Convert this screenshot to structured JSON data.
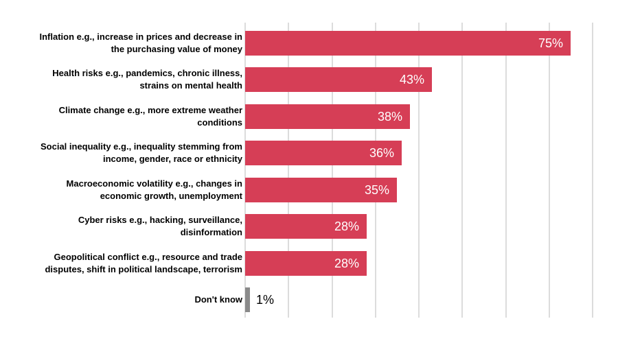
{
  "chart_data": {
    "type": "bar",
    "orientation": "horizontal",
    "title": "",
    "xlabel": "",
    "ylabel": "",
    "grid": true,
    "legend": false,
    "xlim": [
      0,
      80
    ],
    "gridline_step": 10,
    "categories": [
      "Inflation e.g., increase in prices and decrease in\nthe purchasing value of money",
      "Health risks e.g., pandemics, chronic illness,\nstrains on mental health",
      "Climate change e.g., more extreme weather\nconditions",
      "Social inequality e.g., inequality stemming from\nincome, gender, race or ethnicity",
      "Macroeconomic volatility e.g., changes in\neconomic growth, unemployment",
      "Cyber risks e.g., hacking, surveillance,\ndisinformation",
      "Geopolitical conflict e.g., resource and trade\ndisputes, shift in political landscape, terrorism",
      "Don't know"
    ],
    "values": [
      75,
      43,
      38,
      36,
      35,
      28,
      28,
      1
    ],
    "value_labels": [
      "75%",
      "43%",
      "38%",
      "36%",
      "35%",
      "28%",
      "28%",
      "1%"
    ],
    "colors": {
      "bar": "#d63e56",
      "last_bar": "#8a8a8a",
      "value_label_inside": "#ffffff",
      "value_label_outside": "#000000",
      "gridline": "#dcdcdc",
      "category_label": "#000000"
    }
  }
}
